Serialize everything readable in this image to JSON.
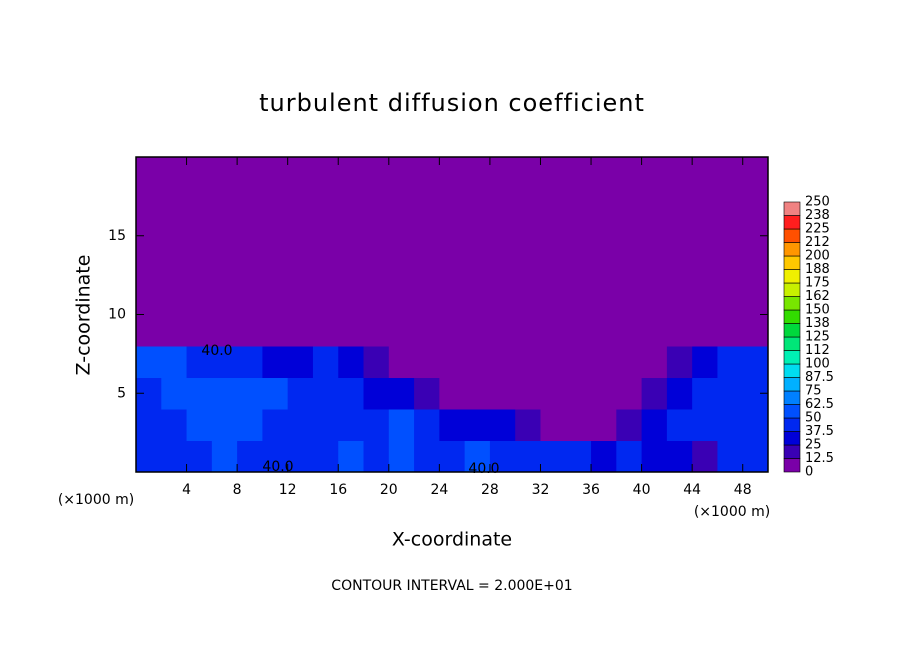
{
  "chart_data": {
    "type": "contour",
    "title": "turbulent diffusion coefficient",
    "x_label": "X-coordinate",
    "y_label": "Z-coordinate",
    "x_unit": "(×1000 m)",
    "footer": "CONTOUR INTERVAL = 2.000E+01",
    "contour_labels": [
      "40.0",
      "40.0",
      "40.0"
    ],
    "xlim": [
      0,
      50
    ],
    "xticks": [
      4,
      8,
      12,
      16,
      20,
      24,
      28,
      32,
      36,
      40,
      44,
      48
    ],
    "ylim": [
      0,
      20
    ],
    "yticks": [
      5,
      10,
      15
    ],
    "x": [
      1,
      3,
      5,
      7,
      9,
      11,
      13,
      15,
      17,
      19,
      21,
      23,
      25,
      27,
      29,
      31,
      33,
      35,
      37,
      39,
      41,
      43,
      45,
      47,
      49
    ],
    "y": [
      1,
      3,
      5,
      7,
      9,
      11,
      13,
      15,
      17,
      19
    ],
    "z": [
      [
        45,
        45,
        40,
        50,
        40,
        45,
        40,
        45,
        50,
        45,
        50,
        45,
        40,
        50,
        45,
        40,
        40,
        45,
        35,
        40,
        30,
        25,
        20,
        40,
        45
      ],
      [
        40,
        45,
        50,
        60,
        55,
        45,
        45,
        45,
        40,
        40,
        50,
        40,
        35,
        30,
        25,
        20,
        10,
        5,
        5,
        20,
        35,
        40,
        40,
        45,
        40
      ],
      [
        45,
        50,
        50,
        55,
        60,
        50,
        45,
        45,
        40,
        35,
        30,
        20,
        10,
        5,
        0,
        0,
        0,
        0,
        0,
        0,
        20,
        35,
        40,
        40,
        45
      ],
      [
        50,
        55,
        40,
        45,
        45,
        30,
        35,
        40,
        30,
        20,
        5,
        0,
        0,
        0,
        0,
        0,
        0,
        0,
        0,
        0,
        0,
        15,
        35,
        40,
        40
      ],
      [
        0,
        0,
        0,
        0,
        10,
        5,
        0,
        0,
        0,
        0,
        0,
        0,
        0,
        0,
        0,
        0,
        0,
        0,
        0,
        0,
        0,
        0,
        0,
        0,
        0
      ],
      [
        0,
        0,
        0,
        0,
        0,
        0,
        0,
        0,
        0,
        0,
        0,
        0,
        0,
        0,
        0,
        0,
        0,
        0,
        0,
        0,
        0,
        0,
        0,
        0,
        0
      ],
      [
        0,
        0,
        0,
        0,
        0,
        0,
        0,
        0,
        0,
        0,
        0,
        0,
        0,
        0,
        0,
        0,
        0,
        0,
        0,
        0,
        0,
        0,
        0,
        0,
        0
      ],
      [
        0,
        0,
        0,
        0,
        0,
        0,
        0,
        0,
        0,
        0,
        0,
        0,
        0,
        0,
        0,
        0,
        0,
        0,
        0,
        0,
        0,
        0,
        0,
        0,
        0
      ],
      [
        0,
        0,
        0,
        0,
        0,
        0,
        0,
        0,
        0,
        0,
        0,
        0,
        0,
        0,
        0,
        0,
        0,
        0,
        0,
        0,
        0,
        0,
        0,
        0,
        0
      ],
      [
        0,
        0,
        0,
        0,
        0,
        0,
        0,
        0,
        0,
        0,
        0,
        0,
        0,
        0,
        0,
        0,
        0,
        0,
        0,
        0,
        0,
        0,
        0,
        0,
        0
      ]
    ],
    "levels": [
      0,
      12.5,
      25,
      37.5,
      50,
      62.5,
      75,
      87.5,
      100,
      112,
      125,
      138,
      150,
      162,
      175,
      188,
      200,
      212,
      225,
      238,
      250
    ],
    "colors": [
      "#7a00a8",
      "#3a00b4",
      "#0000d8",
      "#0028f0",
      "#0050ff",
      "#0080ff",
      "#00b0ff",
      "#00dcf0",
      "#00f0b4",
      "#00e678",
      "#00d83c",
      "#32dc00",
      "#78e600",
      "#c8f000",
      "#f0f000",
      "#ffc800",
      "#ff9600",
      "#ff5000",
      "#ff1e1e",
      "#f08282"
    ]
  }
}
